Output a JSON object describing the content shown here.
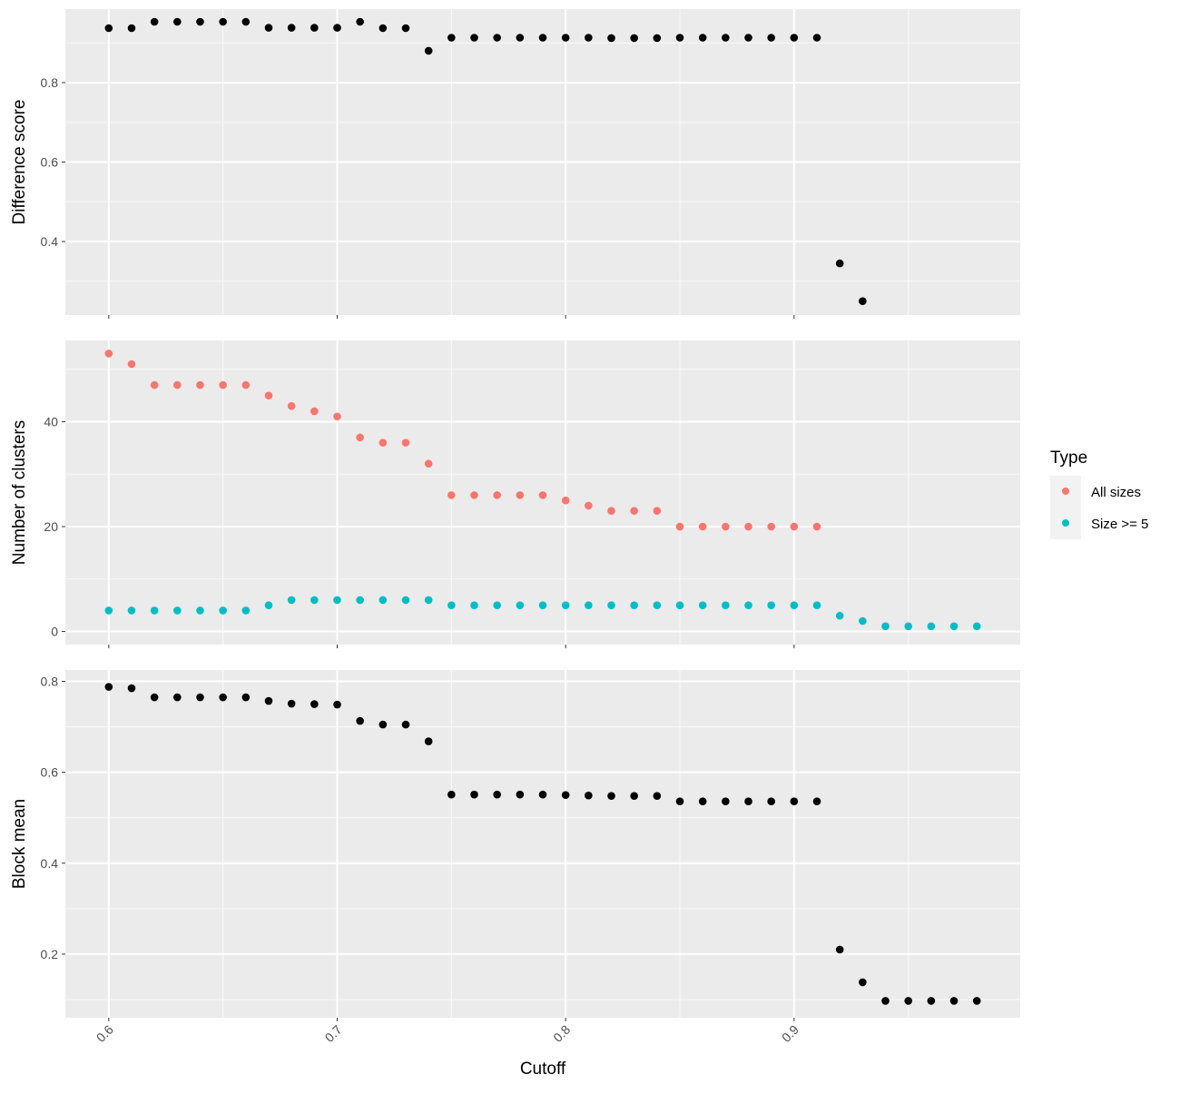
{
  "chart_data": {
    "type": "scatter",
    "layout": "faceted-vertical",
    "x_axis": {
      "label": "Cutoff",
      "lim": [
        0.581,
        0.999
      ],
      "ticks": [
        0.6,
        0.7,
        0.8,
        0.9
      ],
      "tick_labels": [
        "0.6",
        "0.7",
        "0.8",
        "0.9"
      ],
      "minor_ticks": [
        0.65,
        0.75,
        0.85,
        0.95
      ],
      "tick_label_rotation": "45deg"
    },
    "background": "#ebebeb",
    "grid": true,
    "panels": [
      {
        "ylabel": "Difference score",
        "ylim": [
          0.215,
          0.985
        ],
        "y_ticks": [
          0.4,
          0.6,
          0.8
        ],
        "y_tick_labels": [
          "0.4",
          "0.6",
          "0.8"
        ],
        "y_minor_ticks": [
          0.3,
          0.5,
          0.7,
          0.9
        ],
        "series": [
          {
            "color": "#000000",
            "x": [
              0.6,
              0.61,
              0.62,
              0.63,
              0.64,
              0.65,
              0.66,
              0.67,
              0.68,
              0.69,
              0.7,
              0.71,
              0.72,
              0.73,
              0.74,
              0.75,
              0.76,
              0.77,
              0.78,
              0.79,
              0.8,
              0.81,
              0.82,
              0.83,
              0.84,
              0.85,
              0.86,
              0.87,
              0.88,
              0.89,
              0.9,
              0.91,
              0.92,
              0.93
            ],
            "values": [
              0.937,
              0.937,
              0.953,
              0.953,
              0.953,
              0.953,
              0.953,
              0.938,
              0.938,
              0.938,
              0.938,
              0.953,
              0.937,
              0.937,
              0.88,
              0.913,
              0.913,
              0.913,
              0.913,
              0.913,
              0.913,
              0.913,
              0.912,
              0.912,
              0.912,
              0.913,
              0.913,
              0.913,
              0.913,
              0.913,
              0.913,
              0.913,
              0.345,
              0.25
            ]
          }
        ]
      },
      {
        "ylabel": "Number of clusters",
        "ylim": [
          -2.5,
          55.5
        ],
        "y_ticks": [
          0,
          20,
          40
        ],
        "y_tick_labels": [
          "0",
          "20",
          "40"
        ],
        "y_minor_ticks": [
          10,
          30,
          50
        ],
        "series": [
          {
            "name": "All sizes",
            "color": "#f8766d",
            "x": [
              0.6,
              0.61,
              0.62,
              0.63,
              0.64,
              0.65,
              0.66,
              0.67,
              0.68,
              0.69,
              0.7,
              0.71,
              0.72,
              0.73,
              0.74,
              0.75,
              0.76,
              0.77,
              0.78,
              0.79,
              0.8,
              0.81,
              0.82,
              0.83,
              0.84,
              0.85,
              0.86,
              0.87,
              0.88,
              0.89,
              0.9,
              0.91
            ],
            "values": [
              53,
              51,
              47,
              47,
              47,
              47,
              47,
              45,
              43,
              42,
              41,
              37,
              36,
              36,
              32,
              26,
              26,
              26,
              26,
              26,
              25,
              24,
              23,
              23,
              23,
              20,
              20,
              20,
              20,
              20,
              20,
              20
            ]
          },
          {
            "name": "Size >= 5",
            "color": "#00bfc4",
            "x": [
              0.6,
              0.61,
              0.62,
              0.63,
              0.64,
              0.65,
              0.66,
              0.67,
              0.68,
              0.69,
              0.7,
              0.71,
              0.72,
              0.73,
              0.74,
              0.75,
              0.76,
              0.77,
              0.78,
              0.79,
              0.8,
              0.81,
              0.82,
              0.83,
              0.84,
              0.85,
              0.86,
              0.87,
              0.88,
              0.89,
              0.9,
              0.91,
              0.92,
              0.93,
              0.94,
              0.95,
              0.96,
              0.97,
              0.98
            ],
            "values": [
              4,
              4,
              4,
              4,
              4,
              4,
              4,
              5,
              6,
              6,
              6,
              6,
              6,
              6,
              6,
              5,
              5,
              5,
              5,
              5,
              5,
              5,
              5,
              5,
              5,
              5,
              5,
              5,
              5,
              5,
              5,
              5,
              3,
              2,
              1,
              1,
              1,
              1,
              1
            ]
          }
        ]
      },
      {
        "ylabel": "Block mean",
        "ylim": [
          0.06,
          0.825
        ],
        "y_ticks": [
          0.2,
          0.4,
          0.6,
          0.8
        ],
        "y_tick_labels": [
          "0.2",
          "0.4",
          "0.6",
          "0.8"
        ],
        "y_minor_ticks": [
          0.1,
          0.3,
          0.5,
          0.7
        ],
        "series": [
          {
            "color": "#000000",
            "x": [
              0.6,
              0.61,
              0.62,
              0.63,
              0.64,
              0.65,
              0.66,
              0.67,
              0.68,
              0.69,
              0.7,
              0.71,
              0.72,
              0.73,
              0.74,
              0.75,
              0.76,
              0.77,
              0.78,
              0.79,
              0.8,
              0.81,
              0.82,
              0.83,
              0.84,
              0.85,
              0.86,
              0.87,
              0.88,
              0.89,
              0.9,
              0.91,
              0.92,
              0.93,
              0.94,
              0.95,
              0.96,
              0.97,
              0.98
            ],
            "values": [
              0.788,
              0.785,
              0.765,
              0.765,
              0.765,
              0.765,
              0.765,
              0.757,
              0.751,
              0.75,
              0.749,
              0.713,
              0.705,
              0.705,
              0.668,
              0.551,
              0.551,
              0.551,
              0.551,
              0.551,
              0.55,
              0.549,
              0.548,
              0.548,
              0.548,
              0.536,
              0.536,
              0.536,
              0.536,
              0.536,
              0.536,
              0.536,
              0.21,
              0.138,
              0.097,
              0.097,
              0.097,
              0.097,
              0.097
            ]
          }
        ]
      }
    ],
    "legend": {
      "title": "Type",
      "position": "right",
      "entries": [
        {
          "label": "All sizes",
          "color": "#f8766d"
        },
        {
          "label": "Size >= 5",
          "color": "#00bfc4"
        }
      ]
    }
  }
}
